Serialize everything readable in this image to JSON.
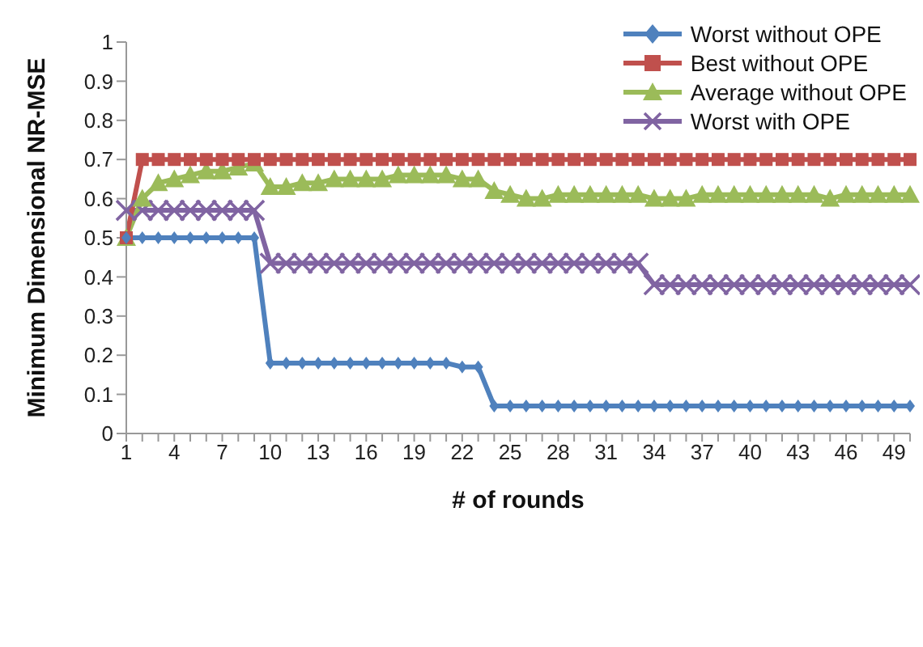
{
  "chart_data": {
    "type": "line",
    "xlabel": "# of rounds",
    "ylabel": "Minimum Dimensional NR-MSE",
    "categories": [
      "1",
      null,
      null,
      "4",
      null,
      null,
      "7",
      null,
      null,
      "10",
      null,
      null,
      "13",
      null,
      null,
      "16",
      null,
      null,
      "19",
      null,
      null,
      "22",
      null,
      null,
      "25",
      null,
      null,
      "28",
      null,
      null,
      "31",
      null,
      null,
      "34",
      null,
      null,
      "37",
      null,
      null,
      "40",
      null,
      null,
      "43",
      null,
      null,
      "46",
      null,
      null,
      "49",
      null
    ],
    "ylim": [
      0,
      1
    ],
    "yticks": [
      0,
      0.1,
      0.2,
      0.3,
      0.4,
      0.5,
      0.6,
      0.7,
      0.8,
      0.9,
      1
    ],
    "grid": false,
    "legend": "top right",
    "series": [
      {
        "name": "Worst without OPE",
        "color": "#4f81bd",
        "marker": "diamond",
        "values": [
          0.5,
          0.5,
          0.5,
          0.5,
          0.5,
          0.5,
          0.5,
          0.5,
          0.5,
          0.18,
          0.18,
          0.18,
          0.18,
          0.18,
          0.18,
          0.18,
          0.18,
          0.18,
          0.18,
          0.18,
          0.18,
          0.17,
          0.17,
          0.07,
          0.07,
          0.07,
          0.07,
          0.07,
          0.07,
          0.07,
          0.07,
          0.07,
          0.07,
          0.07,
          0.07,
          0.07,
          0.07,
          0.07,
          0.07,
          0.07,
          0.07,
          0.07,
          0.07,
          0.07,
          0.07,
          0.07,
          0.07,
          0.07,
          0.07,
          0.07
        ]
      },
      {
        "name": "Best without OPE",
        "color": "#c0504d",
        "marker": "square",
        "values": [
          0.5,
          0.7,
          0.7,
          0.7,
          0.7,
          0.7,
          0.7,
          0.7,
          0.7,
          0.7,
          0.7,
          0.7,
          0.7,
          0.7,
          0.7,
          0.7,
          0.7,
          0.7,
          0.7,
          0.7,
          0.7,
          0.7,
          0.7,
          0.7,
          0.7,
          0.7,
          0.7,
          0.7,
          0.7,
          0.7,
          0.7,
          0.7,
          0.7,
          0.7,
          0.7,
          0.7,
          0.7,
          0.7,
          0.7,
          0.7,
          0.7,
          0.7,
          0.7,
          0.7,
          0.7,
          0.7,
          0.7,
          0.7,
          0.7,
          0.7
        ]
      },
      {
        "name": "Average without OPE",
        "color": "#9bbb59",
        "marker": "triangle",
        "values": [
          0.5,
          0.6,
          0.64,
          0.65,
          0.66,
          0.67,
          0.67,
          0.68,
          0.69,
          0.63,
          0.63,
          0.64,
          0.64,
          0.65,
          0.65,
          0.65,
          0.65,
          0.66,
          0.66,
          0.66,
          0.66,
          0.65,
          0.65,
          0.62,
          0.61,
          0.6,
          0.6,
          0.61,
          0.61,
          0.61,
          0.61,
          0.61,
          0.61,
          0.6,
          0.6,
          0.6,
          0.61,
          0.61,
          0.61,
          0.61,
          0.61,
          0.61,
          0.61,
          0.61,
          0.6,
          0.61,
          0.61,
          0.61,
          0.61,
          0.61
        ]
      },
      {
        "name": "Worst with OPE",
        "color": "#8064a2",
        "marker": "cross",
        "values": [
          0.57,
          0.57,
          0.57,
          0.57,
          0.57,
          0.57,
          0.57,
          0.57,
          0.57,
          0.435,
          0.435,
          0.435,
          0.435,
          0.435,
          0.435,
          0.435,
          0.435,
          0.435,
          0.435,
          0.435,
          0.435,
          0.435,
          0.435,
          0.435,
          0.435,
          0.435,
          0.435,
          0.435,
          0.435,
          0.435,
          0.435,
          0.435,
          0.435,
          0.38,
          0.38,
          0.38,
          0.38,
          0.38,
          0.38,
          0.38,
          0.38,
          0.38,
          0.38,
          0.38,
          0.38,
          0.38,
          0.38,
          0.38,
          0.38,
          0.38
        ]
      }
    ]
  }
}
